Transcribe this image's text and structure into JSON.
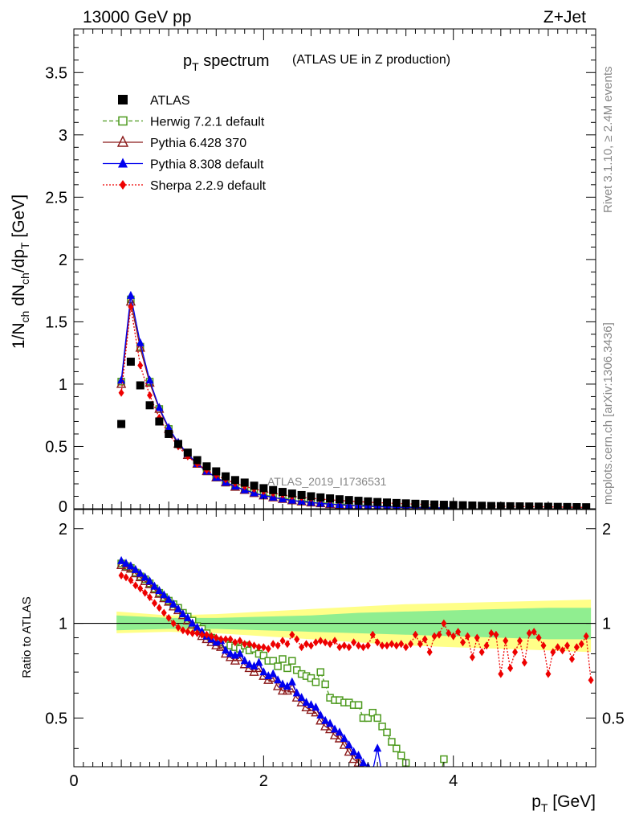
{
  "header": {
    "left": "13000 GeV pp",
    "right": "Z+Jet"
  },
  "side_text": {
    "rivet": "Rivet 3.1.10, ≥ 2.4M events",
    "mcplots": "mcplots.cern.ch [arXiv:1306.3436]"
  },
  "watermark": "ATLAS_2019_I1736531",
  "chart_data": [
    {
      "type": "scatter",
      "title": "p_T spectrum",
      "title_main": "p",
      "title_sub": "T",
      "title_rest": " spectrum",
      "subtitle": "(ATLAS UE in Z production)",
      "ylabel": "1/N_ch dN_ch/dp_T [GeV]",
      "xlim": [
        0,
        5.5
      ],
      "ylim": [
        0,
        3.85
      ],
      "yticks": [
        "0.5",
        "1",
        "1.5",
        "2",
        "2.5",
        "3",
        "3.5"
      ],
      "ytick_values": [
        0.5,
        1,
        1.5,
        2,
        2.5,
        3,
        3.5
      ],
      "ytick_zero": "0",
      "legend": {
        "position": "top-left",
        "entries": [
          "ATLAS",
          "Herwig 7.2.1 default",
          "Pythia 6.428 370",
          "Pythia 8.308 default",
          "Sherpa 2.2.9 default"
        ]
      },
      "x": [
        0.5,
        0.6,
        0.7,
        0.8,
        0.9,
        1.0,
        1.1,
        1.2,
        1.3,
        1.4,
        1.5,
        1.6,
        1.7,
        1.8,
        1.9,
        2.0,
        2.1,
        2.2,
        2.3,
        2.4,
        2.5,
        2.6,
        2.7,
        2.8,
        2.9,
        3.0,
        3.1,
        3.2,
        3.3,
        3.4,
        3.5,
        3.6,
        3.7,
        3.8,
        3.9,
        4.0,
        4.1,
        4.2,
        4.3,
        4.4,
        4.5,
        4.6,
        4.7,
        4.8,
        4.9,
        5.0,
        5.1,
        5.2,
        5.3,
        5.4
      ],
      "series": [
        {
          "name": "ATLAS",
          "color": "#000000",
          "marker": "square-filled",
          "values": [
            0.68,
            1.18,
            0.99,
            0.83,
            0.7,
            0.6,
            0.52,
            0.45,
            0.39,
            0.34,
            0.3,
            0.26,
            0.23,
            0.21,
            0.185,
            0.165,
            0.15,
            0.135,
            0.122,
            0.11,
            0.1,
            0.091,
            0.083,
            0.076,
            0.07,
            0.064,
            0.059,
            0.054,
            0.05,
            0.046,
            0.043,
            0.04,
            0.037,
            0.034,
            0.032,
            0.03,
            0.028,
            0.026,
            0.024,
            0.022,
            0.021,
            0.02,
            0.019,
            0.018,
            0.017,
            0.016,
            0.015,
            0.014,
            0.013,
            0.012
          ]
        },
        {
          "name": "Herwig 7.2.1 default",
          "color": "#4d9a1e",
          "marker": "square-open",
          "dash": "5,3",
          "values": [
            1.02,
            1.68,
            1.3,
            1.02,
            0.8,
            0.64,
            0.52,
            0.43,
            0.36,
            0.3,
            0.25,
            0.21,
            0.18,
            0.155,
            0.13,
            0.112,
            0.097,
            0.085,
            0.074,
            0.065,
            0.057,
            0.05,
            0.044,
            0.039,
            0.034,
            0.03,
            0.027,
            0.024,
            0.021,
            0.019,
            0.017,
            0.015,
            0.013,
            0.012,
            0.011,
            0.01
          ]
        },
        {
          "name": "Pythia 6.428 370",
          "color": "#8b1a1a",
          "marker": "triangle-open",
          "values": [
            1.0,
            1.66,
            1.29,
            1.01,
            0.8,
            0.64,
            0.52,
            0.43,
            0.36,
            0.3,
            0.25,
            0.21,
            0.175,
            0.15,
            0.125,
            0.105,
            0.09,
            0.077,
            0.066,
            0.057,
            0.049,
            0.042,
            0.036,
            0.031,
            0.026,
            0.022,
            0.019,
            0.016,
            0.014,
            0.012,
            0.01,
            0.009,
            0.008,
            0.007,
            0.006,
            0.005
          ]
        },
        {
          "name": "Pythia 8.308 default",
          "color": "#0000ee",
          "marker": "triangle-filled",
          "values": [
            1.03,
            1.71,
            1.33,
            1.03,
            0.81,
            0.65,
            0.53,
            0.44,
            0.36,
            0.3,
            0.25,
            0.21,
            0.18,
            0.15,
            0.126,
            0.106,
            0.091,
            0.078,
            0.067,
            0.058,
            0.05,
            0.043,
            0.037,
            0.032,
            0.027,
            0.023,
            0.02,
            0.017,
            0.015,
            0.013,
            0.011,
            0.01,
            0.009,
            0.008,
            0.007,
            0.006
          ]
        },
        {
          "name": "Sherpa 2.2.9 default",
          "color": "#ee0000",
          "marker": "diamond-filled",
          "dash": "2,2",
          "values": [
            0.93,
            1.62,
            1.15,
            0.91,
            0.73,
            0.6,
            0.5,
            0.42,
            0.36,
            0.31,
            0.27,
            0.235,
            0.205,
            0.18,
            0.16,
            0.14,
            0.125,
            0.112,
            0.1,
            0.092,
            0.084,
            0.078,
            0.072,
            0.066,
            0.061,
            0.057,
            0.053,
            0.049,
            0.046,
            0.043,
            0.04,
            0.037,
            0.035,
            0.033,
            0.031,
            0.029,
            0.027,
            0.025,
            0.023,
            0.021,
            0.02,
            0.019,
            0.018,
            0.017,
            0.016,
            0.015,
            0.014,
            0.013,
            0.012,
            0.011
          ]
        }
      ]
    },
    {
      "type": "scatter",
      "ylabel": "Ratio to ATLAS",
      "xlabel": "p_T [GeV]",
      "xlabel_main": "p",
      "xlabel_sub": "T",
      "xlabel_rest": " [GeV]",
      "xlim": [
        0,
        5.5
      ],
      "ylim": [
        0.35,
        2.3
      ],
      "xticks": [
        "0",
        "2",
        "4"
      ],
      "xtick_values": [
        0,
        2,
        4
      ],
      "yticks": [
        "0.5",
        "1",
        "2"
      ],
      "ytick_values": [
        0.5,
        1,
        2
      ],
      "band": {
        "x": [
          0.45,
          1.0,
          1.5,
          2.0,
          2.5,
          3.0,
          3.5,
          4.0,
          4.5,
          5.0,
          5.45
        ],
        "inner_up": [
          1.06,
          1.04,
          1.04,
          1.05,
          1.06,
          1.08,
          1.09,
          1.1,
          1.11,
          1.12,
          1.12
        ],
        "inner_down": [
          0.95,
          0.96,
          0.96,
          0.95,
          0.94,
          0.93,
          0.92,
          0.91,
          0.9,
          0.89,
          0.89
        ],
        "outer_up": [
          1.09,
          1.06,
          1.07,
          1.09,
          1.11,
          1.13,
          1.15,
          1.16,
          1.17,
          1.18,
          1.19
        ],
        "outer_down": [
          0.93,
          0.94,
          0.93,
          0.91,
          0.89,
          0.87,
          0.85,
          0.84,
          0.83,
          0.82,
          0.81
        ],
        "inner_color": "#90ee90",
        "outer_color": "#ffff88"
      },
      "series": [
        {
          "name": "Herwig 7.2.1 default",
          "color": "#4d9a1e",
          "marker": "square-open",
          "dash": "5,3",
          "x": [
            0.5,
            0.55,
            0.6,
            0.65,
            0.7,
            0.75,
            0.8,
            0.85,
            0.9,
            0.95,
            1.0,
            1.05,
            1.1,
            1.15,
            1.2,
            1.25,
            1.3,
            1.35,
            1.4,
            1.45,
            1.5,
            1.55,
            1.6,
            1.65,
            1.7,
            1.75,
            1.8,
            1.85,
            1.9,
            1.95,
            2.0,
            2.05,
            2.1,
            2.15,
            2.2,
            2.25,
            2.3,
            2.35,
            2.4,
            2.45,
            2.5,
            2.55,
            2.6,
            2.65,
            2.7,
            2.75,
            2.8,
            2.85,
            2.9,
            2.95,
            3.0,
            3.05,
            3.1,
            3.15,
            3.2,
            3.25,
            3.3,
            3.35,
            3.4,
            3.45,
            3.5,
            3.55,
            3.6,
            3.65,
            3.7,
            3.75,
            3.8,
            3.85,
            3.9
          ],
          "values": [
            1.55,
            1.52,
            1.5,
            1.45,
            1.41,
            1.38,
            1.34,
            1.29,
            1.25,
            1.21,
            1.18,
            1.15,
            1.12,
            1.08,
            1.05,
            1.02,
            0.98,
            0.96,
            0.93,
            0.9,
            0.88,
            0.87,
            0.86,
            0.85,
            0.84,
            0.83,
            0.85,
            0.82,
            0.83,
            0.8,
            0.79,
            0.76,
            0.76,
            0.73,
            0.77,
            0.72,
            0.76,
            0.71,
            0.69,
            0.68,
            0.67,
            0.65,
            0.7,
            0.64,
            0.58,
            0.57,
            0.57,
            0.56,
            0.56,
            0.55,
            0.55,
            0.5,
            0.5,
            0.52,
            0.5,
            0.47,
            0.45,
            0.42,
            0.4,
            0.38,
            0.36,
            0.34,
            0.33,
            0.32,
            0.31,
            0.3,
            0.31,
            0.31,
            0.37
          ]
        },
        {
          "name": "Pythia 6.428 370",
          "color": "#8b1a1a",
          "marker": "triangle-open",
          "x": [
            0.5,
            0.55,
            0.6,
            0.65,
            0.7,
            0.75,
            0.8,
            0.85,
            0.9,
            0.95,
            1.0,
            1.05,
            1.1,
            1.15,
            1.2,
            1.25,
            1.3,
            1.35,
            1.4,
            1.45,
            1.5,
            1.55,
            1.6,
            1.65,
            1.7,
            1.75,
            1.8,
            1.85,
            1.9,
            1.95,
            2.0,
            2.05,
            2.1,
            2.15,
            2.2,
            2.25,
            2.3,
            2.35,
            2.4,
            2.45,
            2.5,
            2.55,
            2.6,
            2.65,
            2.7,
            2.75,
            2.8,
            2.85,
            2.9,
            2.95,
            3.0,
            3.05,
            3.1,
            3.15,
            3.2,
            3.25,
            3.3
          ],
          "values": [
            1.53,
            1.51,
            1.49,
            1.44,
            1.4,
            1.36,
            1.33,
            1.28,
            1.24,
            1.2,
            1.17,
            1.13,
            1.1,
            1.06,
            1.02,
            0.99,
            0.95,
            0.91,
            0.89,
            0.87,
            0.85,
            0.84,
            0.8,
            0.78,
            0.76,
            0.78,
            0.74,
            0.72,
            0.7,
            0.72,
            0.68,
            0.66,
            0.67,
            0.63,
            0.61,
            0.61,
            0.62,
            0.58,
            0.56,
            0.54,
            0.53,
            0.52,
            0.49,
            0.47,
            0.46,
            0.44,
            0.43,
            0.41,
            0.39,
            0.37,
            0.36,
            0.34,
            0.33,
            0.32,
            0.31,
            0.3,
            0.3
          ]
        },
        {
          "name": "Pythia 8.308 default",
          "color": "#0000ee",
          "marker": "triangle-filled",
          "x": [
            0.5,
            0.55,
            0.6,
            0.65,
            0.7,
            0.75,
            0.8,
            0.85,
            0.9,
            0.95,
            1.0,
            1.05,
            1.1,
            1.15,
            1.2,
            1.25,
            1.3,
            1.35,
            1.4,
            1.45,
            1.5,
            1.55,
            1.6,
            1.65,
            1.7,
            1.75,
            1.8,
            1.85,
            1.9,
            1.95,
            2.0,
            2.05,
            2.1,
            2.15,
            2.2,
            2.25,
            2.3,
            2.35,
            2.4,
            2.45,
            2.5,
            2.55,
            2.6,
            2.65,
            2.7,
            2.75,
            2.8,
            2.85,
            2.9,
            2.95,
            3.0,
            3.05,
            3.1,
            3.15,
            3.2,
            3.25
          ],
          "values": [
            1.58,
            1.55,
            1.52,
            1.48,
            1.44,
            1.4,
            1.36,
            1.31,
            1.27,
            1.23,
            1.19,
            1.15,
            1.11,
            1.07,
            1.04,
            1.0,
            0.97,
            0.94,
            0.91,
            0.89,
            0.87,
            0.88,
            0.82,
            0.8,
            0.79,
            0.8,
            0.76,
            0.74,
            0.73,
            0.75,
            0.7,
            0.68,
            0.69,
            0.66,
            0.64,
            0.63,
            0.65,
            0.6,
            0.58,
            0.56,
            0.55,
            0.54,
            0.51,
            0.49,
            0.48,
            0.46,
            0.45,
            0.43,
            0.41,
            0.39,
            0.38,
            0.36,
            0.35,
            0.34,
            0.4,
            0.33
          ]
        },
        {
          "name": "Sherpa 2.2.9 default",
          "color": "#ee0000",
          "marker": "diamond-filled",
          "dash": "2,2",
          "x": [
            0.5,
            0.55,
            0.6,
            0.65,
            0.7,
            0.75,
            0.8,
            0.85,
            0.9,
            0.95,
            1.0,
            1.05,
            1.1,
            1.15,
            1.2,
            1.25,
            1.3,
            1.35,
            1.4,
            1.45,
            1.5,
            1.55,
            1.6,
            1.65,
            1.7,
            1.75,
            1.8,
            1.85,
            1.9,
            1.95,
            2.0,
            2.05,
            2.1,
            2.15,
            2.2,
            2.25,
            2.3,
            2.35,
            2.4,
            2.45,
            2.5,
            2.55,
            2.6,
            2.65,
            2.7,
            2.75,
            2.8,
            2.85,
            2.9,
            2.95,
            3.0,
            3.05,
            3.1,
            3.15,
            3.2,
            3.25,
            3.3,
            3.35,
            3.4,
            3.45,
            3.5,
            3.55,
            3.6,
            3.65,
            3.7,
            3.75,
            3.8,
            3.85,
            3.9,
            3.95,
            4.0,
            4.05,
            4.1,
            4.15,
            4.2,
            4.25,
            4.3,
            4.35,
            4.4,
            4.45,
            4.5,
            4.55,
            4.6,
            4.65,
            4.7,
            4.75,
            4.8,
            4.85,
            4.9,
            4.95,
            5.0,
            5.05,
            5.1,
            5.15,
            5.2,
            5.25,
            5.3,
            5.35,
            5.4,
            5.45
          ],
          "values": [
            1.42,
            1.4,
            1.37,
            1.32,
            1.29,
            1.25,
            1.21,
            1.16,
            1.12,
            1.08,
            1.04,
            1.0,
            0.97,
            0.95,
            0.94,
            0.93,
            0.93,
            0.92,
            0.92,
            0.91,
            0.9,
            0.89,
            0.89,
            0.89,
            0.87,
            0.88,
            0.86,
            0.86,
            0.85,
            0.84,
            0.84,
            0.83,
            0.86,
            0.85,
            0.88,
            0.86,
            0.92,
            0.89,
            0.84,
            0.86,
            0.85,
            0.87,
            0.88,
            0.87,
            0.86,
            0.88,
            0.84,
            0.85,
            0.84,
            0.87,
            0.85,
            0.84,
            0.85,
            0.92,
            0.87,
            0.85,
            0.85,
            0.86,
            0.85,
            0.86,
            0.84,
            0.86,
            0.92,
            0.86,
            0.89,
            0.81,
            0.91,
            0.92,
            1.0,
            0.93,
            0.91,
            0.94,
            0.87,
            0.91,
            0.78,
            0.9,
            0.81,
            0.85,
            0.93,
            0.92,
            0.69,
            0.88,
            0.72,
            0.81,
            0.88,
            0.75,
            0.93,
            0.94,
            0.9,
            0.85,
            0.69,
            0.81,
            0.84,
            0.82,
            0.85,
            0.77,
            0.84,
            0.86,
            0.91,
            0.66
          ]
        }
      ]
    }
  ]
}
